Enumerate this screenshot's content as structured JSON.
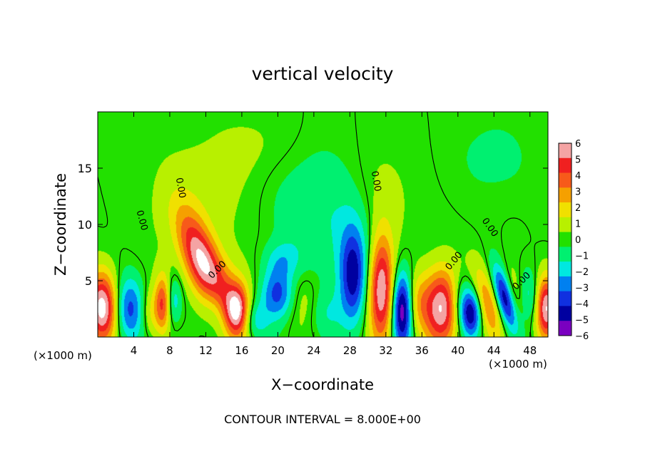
{
  "chart_data": {
    "type": "heatmap",
    "title": "vertical velocity",
    "xlabel": "X−coordinate",
    "ylabel": "Z−coordinate",
    "x_units_left": "(×1000 m)",
    "x_units_right": "(×1000 m)",
    "footer": "CONTOUR INTERVAL = 8.000E+00",
    "xlim": [
      0,
      50
    ],
    "ylim": [
      0,
      20
    ],
    "x_ticks": [
      4,
      8,
      12,
      16,
      20,
      24,
      28,
      32,
      36,
      40,
      44,
      48
    ],
    "y_ticks": [
      5,
      10,
      15
    ],
    "contour_value": 0,
    "contour_labels": [
      "0.00",
      "0.00",
      "0.00",
      "0.00",
      "0.00",
      "0.00",
      "0.00"
    ],
    "colorbar": {
      "ticks": [
        "6",
        "5",
        "4",
        "3",
        "2",
        "1",
        "0",
        "−1",
        "−2",
        "−3",
        "−4",
        "−5",
        "−6"
      ],
      "levels": [
        {
          "min": 5.5,
          "color": "#f4a3a3"
        },
        {
          "min": 4.5,
          "color": "#f02020"
        },
        {
          "min": 3.5,
          "color": "#f75a1a"
        },
        {
          "min": 2.5,
          "color": "#f5a000"
        },
        {
          "min": 1.5,
          "color": "#f0e000"
        },
        {
          "min": 0.5,
          "color": "#b8f000"
        },
        {
          "min": -0.5,
          "color": "#22e000"
        },
        {
          "min": -1.5,
          "color": "#00f070"
        },
        {
          "min": -2.5,
          "color": "#00e8e0"
        },
        {
          "min": -3.5,
          "color": "#0080f0"
        },
        {
          "min": -4.5,
          "color": "#1030e0"
        },
        {
          "min": -5.5,
          "color": "#0000a0"
        },
        {
          "min": -99,
          "color": "#7a00c0"
        }
      ]
    },
    "features": [
      {
        "x": 0.5,
        "z": 2.6,
        "sx": 1.2,
        "sz": 2.2,
        "amp": 7
      },
      {
        "x": 3.5,
        "z": 2.5,
        "sx": 1.2,
        "sz": 2.0,
        "amp": -3.8
      },
      {
        "x": 5.8,
        "z": 2.2,
        "sx": 0.8,
        "sz": 1.6,
        "amp": 1.8
      },
      {
        "x": 7.2,
        "z": 3.0,
        "sx": 0.6,
        "sz": 1.8,
        "amp": 4.2
      },
      {
        "x": 8.5,
        "z": 3.2,
        "sx": 0.6,
        "sz": 1.5,
        "amp": -2.2
      },
      {
        "x": 12.0,
        "z": 5.8,
        "sx": 1.4,
        "sz": 3.4,
        "amp": 7.0,
        "tilt": -0.7
      },
      {
        "x": 13.0,
        "z": 3.0,
        "sx": 1.1,
        "sz": 2.0,
        "amp": -3.5,
        "tilt": -0.5
      },
      {
        "x": 14.5,
        "z": 3.8,
        "sx": 2.2,
        "sz": 2.4,
        "amp": 1.5
      },
      {
        "x": 15.5,
        "z": 2.4,
        "sx": 0.9,
        "sz": 1.6,
        "amp": 5.2
      },
      {
        "x": 17.5,
        "z": 1.5,
        "sx": 1.0,
        "sz": 1.2,
        "amp": -2.0
      },
      {
        "x": 20.0,
        "z": 3.8,
        "sx": 1.3,
        "sz": 1.6,
        "amp": -4.0
      },
      {
        "x": 20.5,
        "z": 6.8,
        "sx": 1.4,
        "sz": 1.2,
        "amp": -1.8
      },
      {
        "x": 22.8,
        "z": 3.5,
        "sx": 1.4,
        "sz": 1.8,
        "amp": 1.2
      },
      {
        "x": 24.0,
        "z": 11.5,
        "sx": 3.5,
        "sz": 4.0,
        "amp": -1.4
      },
      {
        "x": 25.5,
        "z": 2.2,
        "sx": 1.3,
        "sz": 1.6,
        "amp": -1.2
      },
      {
        "x": 28.3,
        "z": 5.2,
        "sx": 1.0,
        "sz": 3.0,
        "amp": -4.5
      },
      {
        "x": 29.5,
        "z": 8.0,
        "sx": 2.5,
        "sz": 3.5,
        "amp": -1.5
      },
      {
        "x": 31.5,
        "z": 4.2,
        "sx": 1.0,
        "sz": 3.4,
        "amp": 7.0
      },
      {
        "x": 33.8,
        "z": 2.4,
        "sx": 0.8,
        "sz": 2.4,
        "amp": -6.5
      },
      {
        "x": 35.5,
        "z": 3.2,
        "sx": 0.9,
        "sz": 1.8,
        "amp": 1.8
      },
      {
        "x": 38.3,
        "z": 2.6,
        "sx": 1.5,
        "sz": 2.4,
        "amp": 7.0
      },
      {
        "x": 40.3,
        "z": 3.0,
        "sx": 1.0,
        "sz": 1.8,
        "amp": -3.0
      },
      {
        "x": 41.5,
        "z": 2.0,
        "sx": 0.8,
        "sz": 1.5,
        "amp": -5.0
      },
      {
        "x": 43.3,
        "z": 3.0,
        "sx": 0.9,
        "sz": 2.4,
        "amp": 3.5,
        "tilt": -0.5
      },
      {
        "x": 45.2,
        "z": 3.5,
        "sx": 0.7,
        "sz": 2.0,
        "amp": -5.5,
        "tilt": -0.5
      },
      {
        "x": 46.5,
        "z": 3.5,
        "sx": 0.9,
        "sz": 2.0,
        "amp": 2.0,
        "tilt": -0.5
      },
      {
        "x": 47.8,
        "z": 3.4,
        "sx": 0.9,
        "sz": 1.8,
        "amp": -2.5
      },
      {
        "x": 49.8,
        "z": 2.6,
        "sx": 0.8,
        "sz": 2.0,
        "amp": 6.5
      },
      {
        "x": 11.0,
        "z": 11.5,
        "sx": 4.0,
        "sz": 4.0,
        "amp": 1.0
      },
      {
        "x": 31.5,
        "z": 11.0,
        "sx": 2.5,
        "sz": 4.0,
        "amp": 1.2
      },
      {
        "x": 44.0,
        "z": 16.0,
        "sx": 3.0,
        "sz": 2.5,
        "amp": -0.8
      },
      {
        "x": 18.0,
        "z": 17.0,
        "sx": 4.0,
        "sz": 2.5,
        "amp": 0.6
      }
    ]
  }
}
